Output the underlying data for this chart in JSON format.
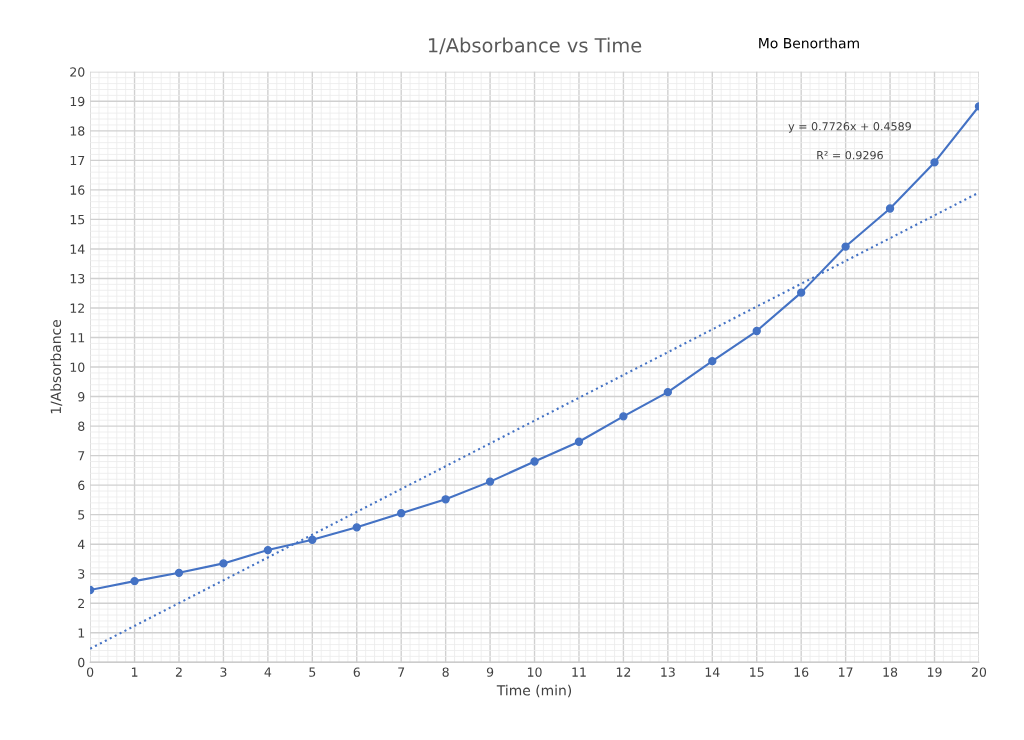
{
  "chart_data": {
    "type": "line",
    "title": "1/Absorbance vs Time",
    "xlabel": "Time (min)",
    "ylabel": "1/Absorbance",
    "annotations": [
      "Mo Benortham",
      "y = 0.7726x + 0.4589",
      "R² = 0.9296"
    ],
    "x": [
      0,
      1,
      2,
      3,
      4,
      5,
      6,
      7,
      8,
      9,
      10,
      11,
      12,
      13,
      14,
      15,
      16,
      17,
      18,
      19,
      20
    ],
    "series": [
      {
        "color": "#4472c4",
        "marker": "circle",
        "line_style": "solid",
        "values": [
          2.45,
          2.75,
          3.03,
          3.35,
          3.8,
          4.15,
          4.57,
          5.05,
          5.52,
          6.12,
          6.8,
          7.47,
          8.33,
          9.15,
          10.2,
          11.22,
          12.52,
          14.08,
          15.37,
          16.93,
          18.83
        ]
      },
      {
        "type": "line",
        "color": "#4472c4",
        "marker": "none",
        "line_style": "dotted",
        "x": [
          0,
          20
        ],
        "values": [
          0.46,
          15.91
        ]
      }
    ],
    "xlim": [
      0,
      20
    ],
    "xticks": [
      0,
      1,
      2,
      3,
      4,
      5,
      6,
      7,
      8,
      9,
      10,
      11,
      12,
      13,
      14,
      15,
      16,
      17,
      18,
      19,
      20
    ],
    "ylim": [
      0,
      20
    ],
    "yticks": [
      0,
      1,
      2,
      3,
      4,
      5,
      6,
      7,
      8,
      9,
      10,
      11,
      12,
      13,
      14,
      15,
      16,
      17,
      18,
      19,
      20
    ],
    "grid": true,
    "legend": false
  }
}
